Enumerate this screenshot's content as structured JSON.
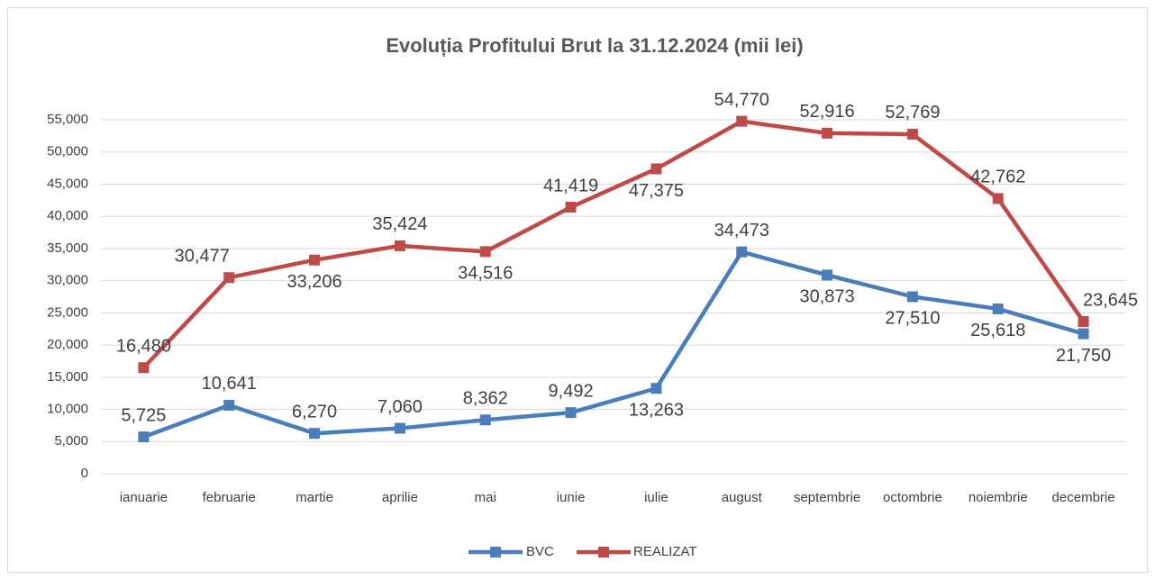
{
  "chart_data": {
    "type": "line",
    "title": "Evoluția Profitului Brut la 31.12.2024 (mii lei)",
    "categories": [
      "ianuarie",
      "februarie",
      "martie",
      "aprilie",
      "mai",
      "iunie",
      "iulie",
      "august",
      "septembrie",
      "octombrie",
      "noiembrie",
      "decembrie"
    ],
    "series": [
      {
        "name": "BVC",
        "color": "#4a7ebb",
        "values": [
          5725,
          10641,
          6270,
          7060,
          8362,
          9492,
          13263,
          34473,
          30873,
          27510,
          25618,
          21750
        ],
        "value_labels": [
          "5,725",
          "10,641",
          "6,270",
          "7,060",
          "8,362",
          "9,492",
          "13,263",
          "34,473",
          "30,873",
          "27,510",
          "25,618",
          "21,750"
        ]
      },
      {
        "name": "REALIZAT",
        "color": "#be4b48",
        "values": [
          16480,
          30477,
          33206,
          35424,
          34516,
          41419,
          47375,
          54770,
          52916,
          52769,
          42762,
          23645
        ],
        "value_labels": [
          "16,480",
          "30,477",
          "33,206",
          "35,424",
          "34,516",
          "41,419",
          "47,375",
          "54,770",
          "52,916",
          "52,769",
          "42,762",
          "23,645"
        ]
      }
    ],
    "ylim": [
      0,
      55000
    ],
    "yticks": [
      0,
      {
        "value": 5000,
        "label": "5,000"
      },
      {
        "value": 10000,
        "label": "10,000"
      },
      {
        "value": 15000,
        "label": "15,000"
      },
      {
        "value": 20000,
        "label": "20,000"
      },
      {
        "value": 25000,
        "label": "25,000"
      },
      {
        "value": 30000,
        "label": "30,000"
      },
      {
        "value": 35000,
        "label": "35,000"
      },
      {
        "value": 40000,
        "label": "40,000"
      },
      {
        "value": 45000,
        "label": "45,000"
      },
      {
        "value": 50000,
        "label": "50,000"
      },
      {
        "value": 55000,
        "label": "55,000"
      }
    ],
    "grid": true,
    "legend": "bottom"
  }
}
